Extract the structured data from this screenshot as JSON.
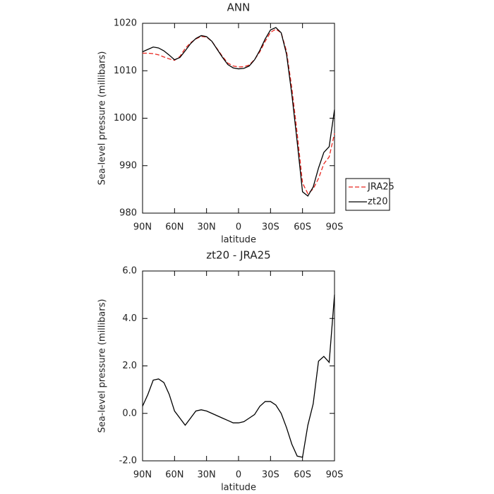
{
  "chart_data": [
    {
      "type": "line",
      "title": "ANN",
      "xlabel": "latitude",
      "ylabel": "Sea-level pressure (millibars)",
      "x": [
        90,
        85,
        80,
        75,
        70,
        65,
        60,
        55,
        50,
        45,
        40,
        35,
        30,
        25,
        20,
        15,
        10,
        5,
        0,
        -5,
        -10,
        -15,
        -20,
        -25,
        -30,
        -35,
        -40,
        -45,
        -50,
        -55,
        -60,
        -65,
        -70,
        -75,
        -80,
        -85,
        -90
      ],
      "series": [
        {
          "name": "JRA25",
          "color": "#e8261f",
          "dashed": true,
          "values": [
            1013.7,
            1013.7,
            1013.6,
            1013.35,
            1012.9,
            1012.5,
            1012.2,
            1013.0,
            1014.7,
            1015.9,
            1016.7,
            1017.25,
            1017.1,
            1016.2,
            1014.6,
            1013.0,
            1011.6,
            1011.0,
            1010.8,
            1010.85,
            1011.2,
            1012.35,
            1014.0,
            1016.2,
            1018.1,
            1018.75,
            1018.0,
            1014.1,
            1006.3,
            996.8,
            986.35,
            984.1,
            985.1,
            987.3,
            990.4,
            991.85,
            996.8
          ]
        },
        {
          "name": "zt20",
          "color": "#000000",
          "dashed": false,
          "values": [
            1014.0,
            1014.5,
            1015.0,
            1014.8,
            1014.2,
            1013.3,
            1012.3,
            1012.8,
            1014.2,
            1015.7,
            1016.8,
            1017.4,
            1017.2,
            1016.2,
            1014.5,
            1012.8,
            1011.3,
            1010.6,
            1010.4,
            1010.5,
            1011.0,
            1012.3,
            1014.3,
            1016.7,
            1018.6,
            1019.1,
            1018.0,
            1013.5,
            1005.0,
            995.0,
            984.5,
            983.6,
            985.5,
            989.5,
            992.8,
            994.0,
            1001.8
          ]
        }
      ],
      "xlim": [
        90,
        -90
      ],
      "xticks": [
        {
          "value": 90,
          "label": "90N"
        },
        {
          "value": 60,
          "label": "60N"
        },
        {
          "value": 30,
          "label": "30N"
        },
        0,
        {
          "value": -30,
          "label": "30S"
        },
        {
          "value": -60,
          "label": "60S"
        },
        {
          "value": -90,
          "label": "90S"
        }
      ],
      "ylim": [
        980,
        1020
      ],
      "yticks": [
        980,
        990,
        1000,
        1010,
        1020
      ],
      "legend": "right"
    },
    {
      "type": "line",
      "title": "zt20 - JRA25",
      "xlabel": "latitude",
      "ylabel": "Sea-level pressure (millibars)",
      "x": [
        90,
        85,
        80,
        75,
        70,
        65,
        60,
        55,
        50,
        45,
        40,
        35,
        30,
        25,
        20,
        15,
        10,
        5,
        0,
        -5,
        -10,
        -15,
        -20,
        -25,
        -30,
        -35,
        -40,
        -45,
        -50,
        -55,
        -60,
        -65,
        -70,
        -75,
        -80,
        -85,
        -90
      ],
      "values": [
        0.3,
        0.8,
        1.4,
        1.45,
        1.3,
        0.8,
        0.1,
        -0.2,
        -0.5,
        -0.2,
        0.1,
        0.15,
        0.1,
        0,
        -0.1,
        -0.2,
        -0.3,
        -0.4,
        -0.4,
        -0.35,
        -0.2,
        -0.05,
        0.3,
        0.5,
        0.5,
        0.35,
        0,
        -0.6,
        -1.3,
        -1.8,
        -1.85,
        -0.5,
        0.4,
        2.2,
        2.4,
        2.15,
        5.0
      ],
      "color": "#000000",
      "xlim": [
        90,
        -90
      ],
      "xticks": [
        {
          "value": 90,
          "label": "90N"
        },
        {
          "value": 60,
          "label": "60N"
        },
        {
          "value": 30,
          "label": "30N"
        },
        0,
        {
          "value": -30,
          "label": "30S"
        },
        {
          "value": -60,
          "label": "60S"
        },
        {
          "value": -90,
          "label": "90S"
        }
      ],
      "ylim": [
        -2,
        6
      ],
      "yticks": [
        {
          "value": -2,
          "label": "-2.0"
        },
        {
          "value": 0,
          "label": "0.0"
        },
        {
          "value": 2,
          "label": "2.0"
        },
        {
          "value": 4,
          "label": "4.0"
        },
        {
          "value": 6,
          "label": "6.0"
        }
      ]
    }
  ]
}
